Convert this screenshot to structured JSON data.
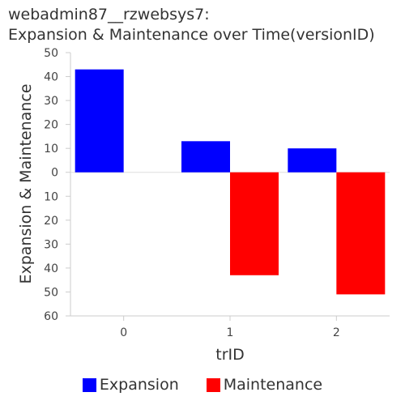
{
  "chart_data": {
    "type": "bar",
    "title_lines": [
      "webadmin87__rzwebsys7:",
      "Expansion & Maintenance over Time(versionID)"
    ],
    "xlabel": "trID",
    "ylabel": "Expansion & Maintenance",
    "categories": [
      "0",
      "1",
      "2"
    ],
    "series": [
      {
        "name": "Expansion",
        "color": "#0000ff",
        "values": [
          43,
          13,
          10
        ]
      },
      {
        "name": "Maintenance",
        "color": "#ff0000",
        "values": [
          0,
          -43,
          -51
        ]
      }
    ],
    "ylim": [
      -60,
      50
    ],
    "yticks": [
      50,
      40,
      30,
      20,
      10,
      0,
      -10,
      -20,
      -30,
      -40,
      -50,
      -60
    ],
    "ytick_labels": [
      "50",
      "40",
      "30",
      "20",
      "10",
      "0",
      "10",
      "20",
      "30",
      "40",
      "50",
      "60"
    ],
    "grid": false,
    "legend_position": "bottom"
  }
}
